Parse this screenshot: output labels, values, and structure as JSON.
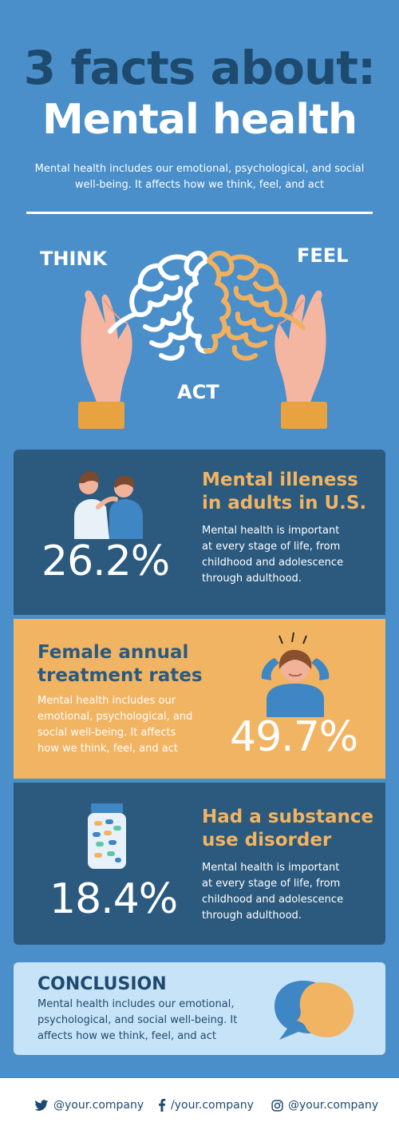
{
  "header": {
    "title_line1": "3 facts about:",
    "title_line2": "Mental health",
    "intro": "Mental health includes our emotional, psychological, and social well-being. It affects how we think, feel, and act"
  },
  "hero": {
    "think": "THINK",
    "feel": "FEEL",
    "act": "ACT"
  },
  "facts": [
    {
      "title_line1": "Mental illeness",
      "title_line2": "in adults in U.S.",
      "body": [
        "Mental health is important",
        "at every stage of life, from",
        "childhood and adolescence",
        "through adulthood."
      ],
      "value": "26.2%"
    },
    {
      "title_line1": "Female annual",
      "title_line2": "treatment rates",
      "body": [
        "Mental health includes our",
        "emotional, psychological, and",
        "social well-being. It affects",
        "how we think, feel, and act"
      ],
      "value": "49.7%"
    },
    {
      "title_line1": "Had a substance",
      "title_line2": "use disorder",
      "body": [
        "Mental health is important",
        "at every stage of life, from",
        "childhood and adolescence",
        "through adulthood."
      ],
      "value": "18.4%"
    }
  ],
  "conclusion": {
    "title": "CONCLUSION",
    "body": [
      "Mental health includes our emotional,",
      "psychological, and social well-being. It",
      "affects how we think, feel, and act"
    ]
  },
  "footer": {
    "twitter": "@your.company",
    "facebook": "/your.company",
    "instagram": "@your.company"
  },
  "colors": {
    "background": "#4a8fc9",
    "navy": "#2b5a7e",
    "orange": "#f1b463",
    "light_blue": "#c7e3f7",
    "dark_text": "#1e4a6f"
  },
  "icons": [
    "brain-icon",
    "hands-icon",
    "people-comfort-icon",
    "stressed-woman-icon",
    "pill-bottle-icon",
    "speech-head-icon",
    "twitter-icon",
    "facebook-icon",
    "instagram-icon"
  ]
}
